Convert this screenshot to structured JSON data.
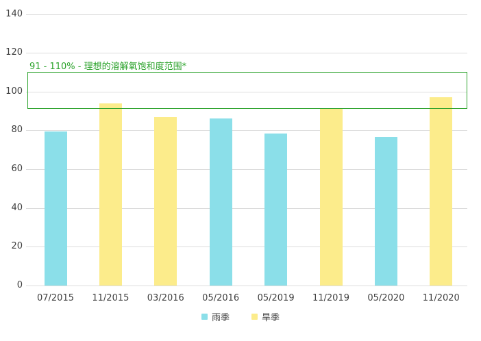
{
  "chart_data": {
    "type": "bar",
    "title": "",
    "xlabel": "",
    "ylabel": "",
    "categories": [
      "07/2015",
      "11/2015",
      "03/2016",
      "05/2016",
      "05/2019",
      "11/2019",
      "05/2020",
      "11/2020"
    ],
    "series": [
      {
        "name": "雨季",
        "color": "#8bdfe9",
        "values": [
          79.5,
          null,
          null,
          86,
          null,
          null,
          76.5,
          null
        ]
      },
      {
        "name": "旱季",
        "color": "#fcec8b",
        "values": [
          null,
          94,
          87,
          null,
          null,
          91,
          null,
          97
        ]
      }
    ],
    "series_patch": {
      "rainy_extra": {
        "index_05_2019": 78.5
      }
    },
    "ylim": [
      0,
      140
    ],
    "yticks": [
      0,
      20,
      40,
      60,
      80,
      100,
      120,
      140
    ],
    "grid": true,
    "legend_position": "bottom",
    "annotation": {
      "label": "91 - 110% - 理想的溶解氧饱和度范围*",
      "y_from": 91,
      "y_to": 110,
      "color": "#2aa22a"
    }
  },
  "colors": {
    "grid": "#dcdcdc",
    "axis_text": "#3f3f3f",
    "background": "#ffffff",
    "rainy": "#8bdfe9",
    "dry": "#fcec8b",
    "range_green": "#2aa22a"
  }
}
